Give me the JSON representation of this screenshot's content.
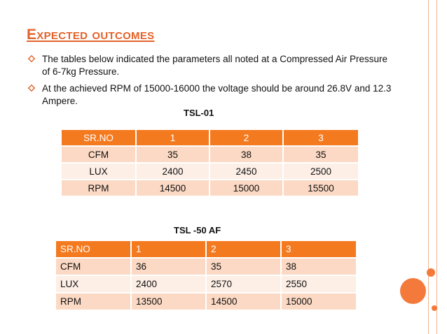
{
  "title": "Expected outcomes",
  "bullets": [
    "The tables below indicated the parameters all noted at a Compressed Air Pressure of 6-7kg Pressure.",
    "At the achieved RPM of 15000-16000 the voltage should be around 26.8V and 12.3 Ampere."
  ],
  "table1": {
    "caption": "TSL-01",
    "header": [
      "SR.NO",
      "1",
      "2",
      "3"
    ],
    "rows": [
      [
        "CFM",
        "35",
        "38",
        "35"
      ],
      [
        "LUX",
        "2400",
        "2450",
        "2500"
      ],
      [
        "RPM",
        "14500",
        "15000",
        "15500"
      ]
    ]
  },
  "table2": {
    "caption": "TSL -50 AF",
    "header": [
      "SR.NO",
      "1",
      "2",
      "3"
    ],
    "rows": [
      [
        "CFM",
        "36",
        "35",
        "38"
      ],
      [
        "LUX",
        "2400",
        "2570",
        "2550"
      ],
      [
        "RPM",
        "13500",
        "14500",
        "15000"
      ]
    ]
  },
  "colors": {
    "accent": "#f47a20",
    "title": "#e3632a",
    "row_dark": "#fcd9c4",
    "row_light": "#fdeee6"
  },
  "icons": {
    "bullet": "hollow-diamond-bullet-icon"
  }
}
